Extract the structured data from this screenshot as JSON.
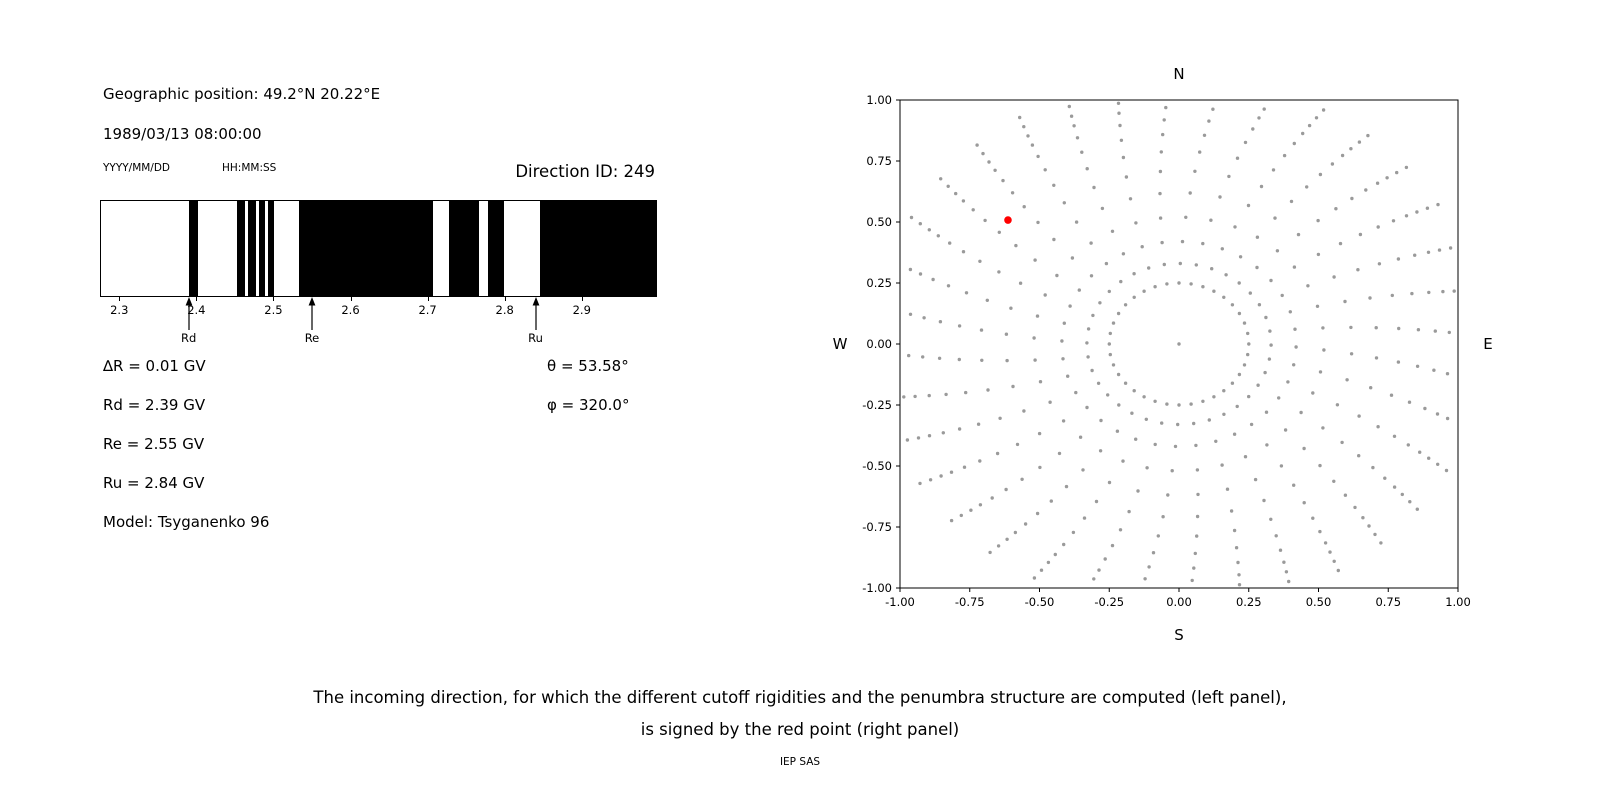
{
  "page": {
    "background": "#ffffff"
  },
  "info_panel": {
    "geo_position": "Geographic position: 49.2°N 20.22°E",
    "datetime": "1989/03/13 08:00:00",
    "date_format": "YYYY/MM/DD",
    "time_format": "HH:MM:SS",
    "direction_id": "Direction ID: 249",
    "left_params": [
      "∆R = 0.01 GV",
      "Rd = 2.39 GV",
      "Re = 2.55 GV",
      "Ru = 2.84 GV",
      "Model: Tsyganenko 96"
    ],
    "right_params": [
      "θ = 53.58°",
      "φ = 320.0°"
    ]
  },
  "chart_data": [
    {
      "type": "bar",
      "subtype": "penumbra-barcode",
      "xlabel_units": "GV",
      "x_range": [
        2.275,
        2.995
      ],
      "x_ticks": [
        2.3,
        2.4,
        2.5,
        2.6,
        2.7,
        2.8,
        2.9
      ],
      "black_bands": [
        [
          2.389,
          2.401
        ],
        [
          2.452,
          2.462
        ],
        [
          2.466,
          2.476
        ],
        [
          2.48,
          2.488
        ],
        [
          2.491,
          2.5
        ],
        [
          2.532,
          2.706
        ],
        [
          2.726,
          2.765
        ],
        [
          2.777,
          2.798
        ],
        [
          2.845,
          2.995
        ]
      ],
      "band_color": "#000000",
      "markers": [
        {
          "label": "Rd",
          "value": 2.39
        },
        {
          "label": "Re",
          "value": 2.55
        },
        {
          "label": "Ru",
          "value": 2.84
        }
      ]
    },
    {
      "type": "scatter",
      "xlim": [
        -1.0,
        1.0
      ],
      "ylim": [
        -1.0,
        1.0
      ],
      "x_ticks": [
        -1.0,
        -0.75,
        -0.5,
        -0.25,
        0.0,
        0.25,
        0.5,
        0.75,
        1.0
      ],
      "y_ticks": [
        -1.0,
        -0.75,
        -0.5,
        -0.25,
        0.0,
        0.25,
        0.5,
        0.75,
        1.0
      ],
      "tick_format_decimals": 2,
      "direction_labels": {
        "top": "N",
        "bottom": "S",
        "left": "W",
        "right": "E"
      },
      "grid_points": {
        "azimuth_count": 36,
        "inner_ring_radius": 0.25,
        "center_point": true,
        "spoke_radii": [
          0.33,
          0.42,
          0.52,
          0.62,
          0.71,
          0.79,
          0.86,
          0.92,
          0.97,
          1.01,
          1.05,
          1.09
        ],
        "spiral_deg_per_unit_r": 10,
        "clip_limit": 0.995,
        "color": "#9a9a9a"
      },
      "red_point": {
        "x": -0.613,
        "y": 0.508,
        "color": "#ff0000"
      },
      "legend": "off",
      "grid": "off"
    }
  ],
  "caption": {
    "line1": "The incoming direction, for which the different cutoff rigidities and the penumbra structure are computed (left panel),",
    "line2": "is signed by the red point (right panel)",
    "credit": "IEP SAS"
  }
}
